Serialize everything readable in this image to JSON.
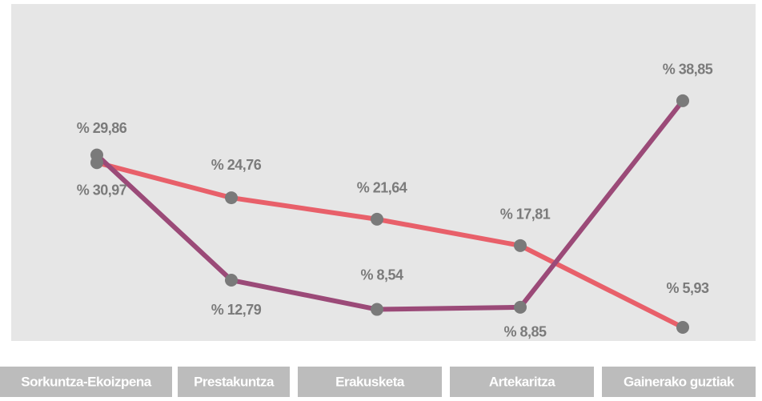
{
  "chart_data": {
    "type": "line",
    "categories": [
      "Sorkuntza-Ekoizpena",
      "Prestakuntza",
      "Erakusketa",
      "Artekaritza",
      "Gainerako guztiak"
    ],
    "series": [
      {
        "color": "#e8606a",
        "values": [
          29.86,
          24.76,
          21.64,
          17.81,
          5.93
        ],
        "value_labels": [
          "% 29,86",
          "% 24,76",
          "% 21,64",
          "% 17,81",
          "% 5,93"
        ]
      },
      {
        "color": "#9b4a78",
        "values": [
          30.97,
          12.79,
          8.54,
          8.85,
          38.85
        ],
        "value_labels": [
          "% 30,97",
          "% 12,79",
          "% 8,54",
          "% 8,85",
          "% 38,85"
        ]
      }
    ]
  }
}
